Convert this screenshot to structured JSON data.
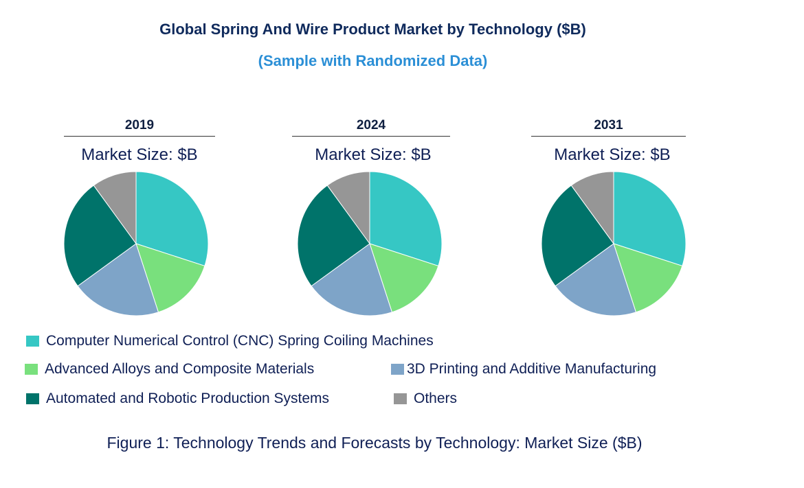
{
  "title": "Global Spring And Wire Product Market by Technology ($B)",
  "subtitle": "(Sample with Randomized Data)",
  "caption": "Figure 1: Technology Trends and Forecasts by Technology: Market Size ($B)",
  "chart_data": [
    {
      "type": "pie",
      "title": "2019",
      "subtitle": "Market Size: $B",
      "categories": [
        "Computer Numerical Control (CNC) Spring Coiling Machines",
        "Advanced Alloys and Composite Materials",
        "3D Printing and Additive Manufacturing",
        "Automated and Robotic Production Systems",
        "Others"
      ],
      "values": [
        30,
        15,
        20,
        25,
        10
      ]
    },
    {
      "type": "pie",
      "title": "2024",
      "subtitle": "Market Size: $B",
      "categories": [
        "Computer Numerical Control (CNC) Spring Coiling Machines",
        "Advanced Alloys and Composite Materials",
        "3D Printing and Additive Manufacturing",
        "Automated and Robotic Production Systems",
        "Others"
      ],
      "values": [
        30,
        15,
        20,
        25,
        10
      ]
    },
    {
      "type": "pie",
      "title": "2031",
      "subtitle": "Market Size: $B",
      "categories": [
        "Computer Numerical Control (CNC) Spring Coiling Machines",
        "Advanced Alloys and Composite Materials",
        "3D Printing and Additive Manufacturing",
        "Automated and Robotic Production Systems",
        "Others"
      ],
      "values": [
        30,
        15,
        20,
        25,
        10
      ]
    }
  ],
  "legend": [
    {
      "label": "Computer Numerical Control (CNC) Spring Coiling Machines",
      "color": "#36c7c4"
    },
    {
      "label": "Advanced Alloys and Composite Materials",
      "color": "#79e07d"
    },
    {
      "label": "3D Printing and Additive Manufacturing",
      "color": "#7ea4c8"
    },
    {
      "label": "Automated and Robotic Production Systems",
      "color": "#00736a"
    },
    {
      "label": "Others",
      "color": "#969696"
    }
  ]
}
